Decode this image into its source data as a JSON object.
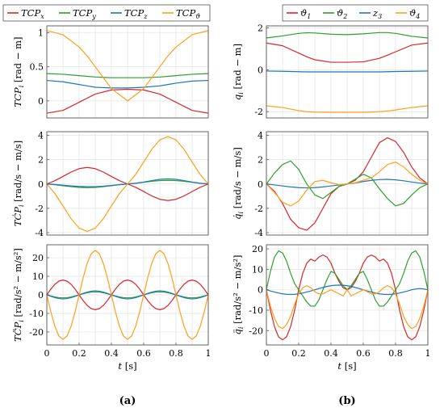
{
  "caption": {
    "a": "(a)",
    "b": "(b)"
  },
  "legend_a": [
    {
      "label": "TCP",
      "sub": "x",
      "color": "#d62728"
    },
    {
      "label": "TCP",
      "sub": "y",
      "color": "#2ca02c"
    },
    {
      "label": "TCP",
      "sub": "z",
      "color": "#1f77b4"
    },
    {
      "label": "TCP",
      "sub": "ϑ",
      "color": "#ff9f1c"
    }
  ],
  "legend_b": [
    {
      "label": "ϑ",
      "sub": "1",
      "color": "#d62728"
    },
    {
      "label": "ϑ",
      "sub": "2",
      "color": "#2ca02c"
    },
    {
      "label": "z",
      "sub": "3",
      "color": "#1f77b4"
    },
    {
      "label": "ϑ",
      "sub": "4",
      "color": "#ff9f1c"
    }
  ],
  "chart_data": [
    {
      "type": "line",
      "panel": "a-top",
      "ylabel": "TCP_i [rad − m]",
      "xlabel": "",
      "ylim": [
        -0.25,
        1.1
      ],
      "yticks": [
        0,
        0.5,
        1
      ],
      "xticks": [],
      "xlim": [
        0,
        1
      ],
      "grid": true,
      "x": [
        0,
        0.1,
        0.2,
        0.25,
        0.3,
        0.4,
        0.5,
        0.6,
        0.7,
        0.75,
        0.8,
        0.9,
        1
      ],
      "series": [
        {
          "name": "TCP_x",
          "color": "#d62728",
          "values": [
            -0.18,
            -0.14,
            -0.02,
            0.04,
            0.1,
            0.16,
            0.17,
            0.16,
            0.1,
            0.04,
            -0.02,
            -0.14,
            -0.18
          ]
        },
        {
          "name": "TCP_y",
          "color": "#2ca02c",
          "values": [
            0.4,
            0.39,
            0.37,
            0.36,
            0.35,
            0.34,
            0.34,
            0.34,
            0.35,
            0.36,
            0.37,
            0.39,
            0.4
          ]
        },
        {
          "name": "TCP_z",
          "color": "#1f77b4",
          "values": [
            0.3,
            0.28,
            0.24,
            0.22,
            0.2,
            0.19,
            0.19,
            0.2,
            0.22,
            0.24,
            0.26,
            0.29,
            0.3
          ]
        },
        {
          "name": "TCP_ϑ",
          "color": "#ff9f1c",
          "values": [
            1.03,
            0.97,
            0.79,
            0.66,
            0.5,
            0.18,
            0.0,
            0.18,
            0.5,
            0.66,
            0.79,
            0.97,
            1.03
          ]
        }
      ]
    },
    {
      "type": "line",
      "panel": "a-mid",
      "ylabel": "TĊP_i [rad/s − m/s]",
      "xlabel": "",
      "ylim": [
        -4.2,
        4.3
      ],
      "yticks": [
        -4,
        -2,
        0,
        2,
        4
      ],
      "xticks": [],
      "xlim": [
        0,
        1
      ],
      "grid": true,
      "x": [
        0,
        0.05,
        0.1,
        0.15,
        0.2,
        0.25,
        0.3,
        0.35,
        0.4,
        0.45,
        0.5,
        0.55,
        0.6,
        0.65,
        0.7,
        0.75,
        0.8,
        0.85,
        0.9,
        0.95,
        1
      ],
      "series": [
        {
          "name": "TCP_x",
          "color": "#d62728",
          "values": [
            0,
            0.27,
            0.62,
            0.98,
            1.26,
            1.36,
            1.26,
            0.98,
            0.62,
            0.27,
            0,
            -0.27,
            -0.62,
            -0.98,
            -1.26,
            -1.36,
            -1.26,
            -0.98,
            -0.62,
            -0.27,
            0
          ]
        },
        {
          "name": "TCP_y",
          "color": "#2ca02c",
          "values": [
            0,
            -0.06,
            -0.14,
            -0.22,
            -0.28,
            -0.3,
            -0.28,
            -0.22,
            -0.14,
            -0.06,
            0,
            0.06,
            0.14,
            0.22,
            0.28,
            0.3,
            0.28,
            0.22,
            0.14,
            0.06,
            0
          ]
        },
        {
          "name": "TCP_z",
          "color": "#1f77b4",
          "values": [
            0,
            -0.04,
            -0.1,
            -0.16,
            -0.2,
            -0.22,
            -0.22,
            -0.18,
            -0.12,
            -0.05,
            0,
            0.06,
            0.16,
            0.28,
            0.38,
            0.42,
            0.38,
            0.28,
            0.16,
            0.06,
            0
          ]
        },
        {
          "name": "TCP_ϑ",
          "color": "#ff9f1c",
          "values": [
            0,
            -0.78,
            -1.8,
            -2.85,
            -3.63,
            -3.9,
            -3.63,
            -2.85,
            -1.8,
            -0.78,
            0,
            0.78,
            1.8,
            2.85,
            3.63,
            3.9,
            3.63,
            2.85,
            1.8,
            0.78,
            0
          ]
        }
      ]
    },
    {
      "type": "line",
      "panel": "a-bot",
      "ylabel": "TC̈P_i [rad/s² − m/s²]",
      "xlabel": "t [s]",
      "ylim": [
        -27,
        27
      ],
      "yticks": [
        -20,
        -10,
        0,
        10,
        20
      ],
      "xticks": [
        0,
        0.2,
        0.4,
        0.6,
        0.8,
        1
      ],
      "xlim": [
        0,
        1
      ],
      "grid": true,
      "x": [
        0,
        0.025,
        0.05,
        0.075,
        0.1,
        0.125,
        0.15,
        0.175,
        0.2,
        0.225,
        0.25,
        0.275,
        0.3,
        0.325,
        0.35,
        0.375,
        0.4,
        0.425,
        0.45,
        0.475,
        0.5,
        0.525,
        0.55,
        0.575,
        0.6,
        0.625,
        0.65,
        0.675,
        0.7,
        0.725,
        0.75,
        0.775,
        0.8,
        0.825,
        0.85,
        0.875,
        0.9,
        0.925,
        0.95,
        0.975,
        1
      ],
      "series": [
        {
          "name": "TCP_x",
          "color": "#d62728",
          "values": [
            0,
            3.1,
            5.7,
            7.4,
            8.0,
            7.4,
            5.7,
            3.1,
            0,
            -3.1,
            -5.7,
            -7.4,
            -8.0,
            -7.4,
            -5.7,
            -3.1,
            0,
            3.1,
            5.7,
            7.4,
            8.0,
            7.4,
            5.7,
            3.1,
            0,
            -3.1,
            -5.7,
            -7.4,
            -8.0,
            -7.4,
            -5.7,
            -3.1,
            0,
            3.1,
            5.7,
            7.4,
            8.0,
            7.4,
            5.7,
            3.1,
            0
          ]
        },
        {
          "name": "TCP_y",
          "color": "#2ca02c",
          "values": [
            0,
            -0.6,
            -1.1,
            -1.5,
            -1.6,
            -1.5,
            -1.1,
            -0.6,
            0,
            0.6,
            1.1,
            1.5,
            1.6,
            1.5,
            1.1,
            0.6,
            0,
            -0.6,
            -1.1,
            -1.5,
            -1.6,
            -1.5,
            -1.1,
            -0.6,
            0,
            0.6,
            1.1,
            1.5,
            1.6,
            1.5,
            1.1,
            0.6,
            0,
            -0.6,
            -1.1,
            -1.5,
            -1.6,
            -1.5,
            -1.1,
            -0.6,
            0
          ]
        },
        {
          "name": "TCP_z",
          "color": "#1f77b4",
          "values": [
            0,
            -0.8,
            -1.5,
            -2.0,
            -2.2,
            -2.0,
            -1.5,
            -0.8,
            0,
            0.8,
            1.5,
            2.0,
            2.2,
            2.0,
            1.5,
            0.8,
            0,
            -0.8,
            -1.5,
            -2.0,
            -2.2,
            -2.0,
            -1.5,
            -0.8,
            0,
            0.8,
            1.5,
            2.0,
            2.2,
            2.0,
            1.5,
            0.8,
            0,
            -0.8,
            -1.5,
            -2.0,
            -2.2,
            -2.0,
            -1.5,
            -0.8,
            0
          ]
        },
        {
          "name": "TCP_ϑ",
          "color": "#ff9f1c",
          "values": [
            0,
            -9.2,
            -17.0,
            -22.2,
            -24.0,
            -22.2,
            -17.0,
            -9.2,
            0,
            9.2,
            17.0,
            22.2,
            24.0,
            22.2,
            17.0,
            9.2,
            0,
            -9.2,
            -17.0,
            -22.2,
            -24.0,
            -22.2,
            -17.0,
            -9.2,
            0,
            9.2,
            17.0,
            22.2,
            24.0,
            22.2,
            17.0,
            9.2,
            0,
            -9.2,
            -17.0,
            -22.2,
            -24.0,
            -22.2,
            -17.0,
            -9.2,
            0
          ]
        }
      ]
    },
    {
      "type": "line",
      "panel": "b-top",
      "ylabel": "q_i [rad − m]",
      "xlabel": "",
      "ylim": [
        -2.3,
        2.1
      ],
      "yticks": [
        -2,
        0,
        2
      ],
      "xticks": [],
      "xlim": [
        0,
        1
      ],
      "grid": true,
      "x": [
        0,
        0.1,
        0.2,
        0.25,
        0.3,
        0.4,
        0.5,
        0.6,
        0.7,
        0.75,
        0.8,
        0.9,
        1
      ],
      "series": [
        {
          "name": "ϑ1",
          "color": "#d62728",
          "values": [
            1.28,
            1.15,
            0.8,
            0.62,
            0.48,
            0.36,
            0.36,
            0.38,
            0.55,
            0.7,
            0.86,
            1.18,
            1.28
          ]
        },
        {
          "name": "ϑ2",
          "color": "#2ca02c",
          "values": [
            1.52,
            1.62,
            1.74,
            1.77,
            1.76,
            1.7,
            1.68,
            1.72,
            1.78,
            1.78,
            1.74,
            1.6,
            1.52
          ]
        },
        {
          "name": "z3",
          "color": "#1f77b4",
          "values": [
            -0.06,
            -0.07,
            -0.09,
            -0.1,
            -0.1,
            -0.1,
            -0.1,
            -0.1,
            -0.1,
            -0.09,
            -0.08,
            -0.07,
            -0.06
          ]
        },
        {
          "name": "ϑ4",
          "color": "#ff9f1c",
          "values": [
            -1.72,
            -1.8,
            -1.95,
            -2.0,
            -2.02,
            -2.03,
            -2.03,
            -2.03,
            -2.0,
            -1.97,
            -1.92,
            -1.8,
            -1.72
          ]
        }
      ]
    },
    {
      "type": "line",
      "panel": "b-mid",
      "ylabel": "q̇_i [rad/s − m/s]",
      "xlabel": "",
      "ylim": [
        -4.2,
        4.3
      ],
      "yticks": [
        -4,
        -2,
        0,
        2,
        4
      ],
      "xticks": [],
      "xlim": [
        0,
        1
      ],
      "grid": true,
      "x": [
        0,
        0.05,
        0.1,
        0.15,
        0.2,
        0.25,
        0.3,
        0.35,
        0.4,
        0.45,
        0.5,
        0.55,
        0.6,
        0.65,
        0.7,
        0.75,
        0.8,
        0.85,
        0.9,
        0.95,
        1
      ],
      "series": [
        {
          "name": "ϑ1",
          "color": "#d62728",
          "values": [
            0,
            -0.6,
            -1.6,
            -2.9,
            -3.6,
            -3.8,
            -3.2,
            -2.0,
            -0.8,
            -0.2,
            0,
            0.3,
            1.0,
            2.2,
            3.4,
            3.8,
            3.5,
            2.6,
            1.4,
            0.5,
            0
          ]
        },
        {
          "name": "ϑ2",
          "color": "#2ca02c",
          "values": [
            0,
            0.9,
            1.6,
            1.9,
            1.2,
            0,
            -0.9,
            -1.2,
            -0.7,
            -0.2,
            0,
            0.4,
            0.8,
            0.5,
            -0.4,
            -1.2,
            -1.8,
            -1.6,
            -0.9,
            -0.3,
            0
          ]
        },
        {
          "name": "z3",
          "color": "#1f77b4",
          "values": [
            0,
            -0.08,
            -0.16,
            -0.24,
            -0.3,
            -0.32,
            -0.3,
            -0.24,
            -0.16,
            -0.08,
            0,
            0.08,
            0.2,
            0.3,
            0.36,
            0.38,
            0.34,
            0.26,
            0.16,
            0.08,
            0
          ]
        },
        {
          "name": "ϑ4",
          "color": "#ff9f1c",
          "values": [
            0,
            -0.7,
            -1.5,
            -1.8,
            -1.4,
            -0.5,
            0.2,
            0.3,
            0.1,
            -0.05,
            0,
            0.1,
            0.3,
            0.5,
            1.0,
            1.6,
            1.8,
            1.4,
            0.8,
            0.3,
            0
          ]
        }
      ]
    },
    {
      "type": "line",
      "panel": "b-bot",
      "ylabel": "q̈_i [rad/s² − m/s²]",
      "xlabel": "t [s]",
      "ylim": [
        -27,
        22
      ],
      "yticks": [
        -20,
        -10,
        0,
        10,
        20
      ],
      "xticks": [
        0,
        0.2,
        0.4,
        0.6,
        0.8,
        1
      ],
      "xlim": [
        0,
        1
      ],
      "grid": true,
      "x": [
        0,
        0.025,
        0.05,
        0.075,
        0.1,
        0.125,
        0.15,
        0.175,
        0.2,
        0.225,
        0.25,
        0.275,
        0.3,
        0.325,
        0.35,
        0.375,
        0.4,
        0.425,
        0.45,
        0.475,
        0.5,
        0.525,
        0.55,
        0.575,
        0.6,
        0.625,
        0.65,
        0.675,
        0.7,
        0.725,
        0.75,
        0.775,
        0.8,
        0.825,
        0.85,
        0.875,
        0.9,
        0.925,
        0.95,
        0.975,
        1
      ],
      "series": [
        {
          "name": "ϑ1",
          "color": "#d62728",
          "values": [
            0,
            -10,
            -18,
            -23,
            -24.5,
            -23,
            -18,
            -10,
            0,
            8,
            13,
            15,
            14,
            16,
            17,
            16,
            13,
            8,
            4,
            1,
            0,
            1,
            4,
            8,
            13,
            16,
            17,
            16,
            14,
            15,
            13,
            8,
            0,
            -10,
            -18,
            -23,
            -24.5,
            -23,
            -18,
            -10,
            0
          ]
        },
        {
          "name": "ϑ2",
          "color": "#2ca02c",
          "values": [
            0,
            9,
            16,
            19,
            18,
            14,
            8,
            3,
            0,
            -3,
            -6,
            -8,
            -8,
            -5,
            0,
            5,
            9,
            8,
            5,
            2,
            0,
            2,
            5,
            8,
            9,
            5,
            0,
            -5,
            -8,
            -8,
            -6,
            -3,
            0,
            3,
            8,
            14,
            18,
            19,
            16,
            9,
            0
          ]
        },
        {
          "name": "z3",
          "color": "#1f77b4",
          "values": [
            0,
            -0.6,
            -1.1,
            -1.6,
            -2.0,
            -2.2,
            -2.3,
            -2.2,
            -2.0,
            -1.6,
            -1.1,
            -0.6,
            0,
            0.6,
            1.1,
            1.6,
            2.0,
            2.2,
            2.3,
            2.2,
            2.0,
            1.6,
            1.1,
            0.6,
            0,
            -0.6,
            -1.1,
            -1.6,
            -2.0,
            -2.2,
            -2.3,
            -2.2,
            -2.0,
            -1.6,
            -1.1,
            -0.6,
            0,
            0.4,
            0.6,
            0.4,
            0
          ]
        },
        {
          "name": "ϑ4",
          "color": "#ff9f1c",
          "values": [
            0,
            -8,
            -14,
            -18,
            -19,
            -17,
            -13,
            -7,
            -2,
            1,
            2,
            1,
            -1,
            -2,
            -2,
            -1,
            0,
            -1,
            -2,
            -3,
            0,
            -3,
            -2,
            -1,
            0,
            -1,
            -2,
            -2,
            -1,
            1,
            2,
            1,
            -2,
            -7,
            -13,
            -17,
            -19,
            -18,
            -14,
            -8,
            0
          ]
        }
      ]
    }
  ]
}
